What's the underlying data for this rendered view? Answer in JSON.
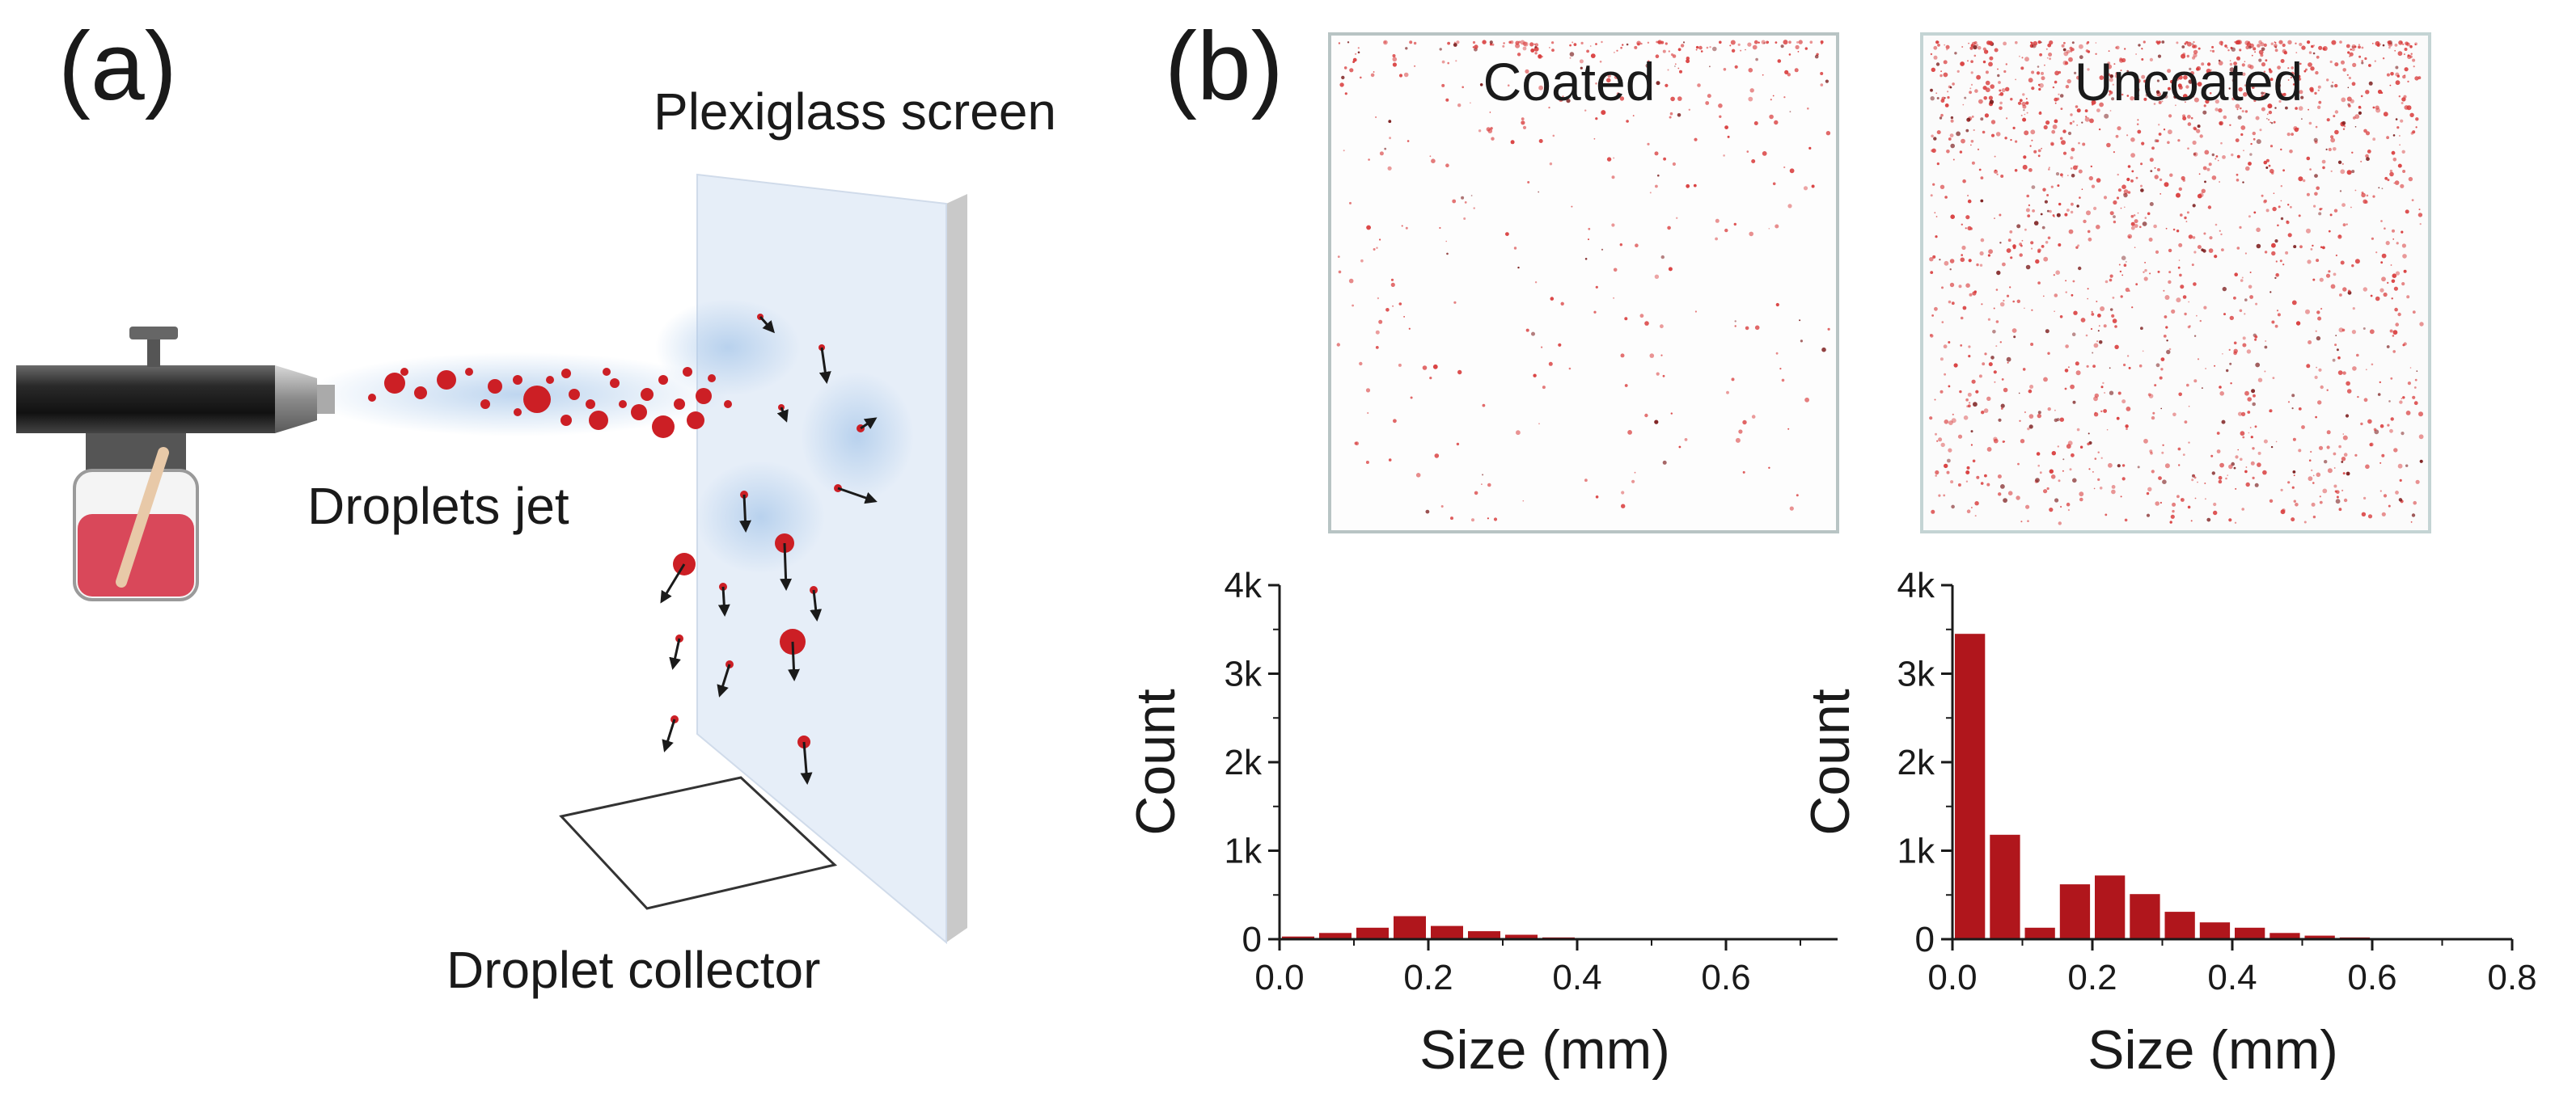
{
  "panels": {
    "a_label": "(a)",
    "b_label": "(b)"
  },
  "schematic": {
    "screen_label": "Plexiglass screen",
    "jet_label": "Droplets jet",
    "collector_label": "Droplet collector",
    "droplet_color": "#cc1f25",
    "mist_color": "#a9c8ea",
    "screen_color": "#e6eef8"
  },
  "photos": [
    {
      "title": "Coated",
      "speckle_density": "low"
    },
    {
      "title": "Uncoated",
      "speckle_density": "high"
    }
  ],
  "colors": {
    "bar": "#b0161c",
    "axis": "#1a1a1a"
  },
  "chart_data": [
    {
      "type": "bar",
      "title": "Coated",
      "xlabel": "Size (mm)",
      "ylabel": "Count",
      "xlim": [
        0,
        0.75
      ],
      "ylim": [
        0,
        4000
      ],
      "bin_width": 0.05,
      "x_ticks": [
        "0.0",
        "0.2",
        "0.4",
        "0.6"
      ],
      "x_tick_values": [
        0.0,
        0.2,
        0.4,
        0.6
      ],
      "y_ticks": [
        "0",
        "1k",
        "2k",
        "3k",
        "4k"
      ],
      "y_tick_values": [
        0,
        1000,
        2000,
        3000,
        4000
      ],
      "bin_starts": [
        0.0,
        0.05,
        0.1,
        0.15,
        0.2,
        0.25,
        0.3,
        0.35,
        0.4,
        0.45,
        0.5,
        0.55,
        0.6,
        0.65,
        0.7
      ],
      "values": [
        30,
        70,
        130,
        260,
        150,
        90,
        50,
        20,
        10,
        5,
        3,
        2,
        1,
        1,
        0
      ]
    },
    {
      "type": "bar",
      "title": "Uncoated",
      "xlabel": "Size (mm)",
      "ylabel": "Count",
      "xlim": [
        0,
        0.8
      ],
      "ylim": [
        0,
        4000
      ],
      "bin_width": 0.05,
      "x_ticks": [
        "0.0",
        "0.2",
        "0.4",
        "0.6",
        "0.8"
      ],
      "x_tick_values": [
        0.0,
        0.2,
        0.4,
        0.6,
        0.8
      ],
      "y_ticks": [
        "0",
        "1k",
        "2k",
        "3k",
        "4k"
      ],
      "y_tick_values": [
        0,
        1000,
        2000,
        3000,
        4000
      ],
      "bin_starts": [
        0.0,
        0.05,
        0.1,
        0.15,
        0.2,
        0.25,
        0.3,
        0.35,
        0.4,
        0.45,
        0.5,
        0.55,
        0.6,
        0.65,
        0.7
      ],
      "values": [
        3450,
        1180,
        130,
        620,
        720,
        510,
        310,
        190,
        130,
        70,
        40,
        20,
        10,
        5,
        0
      ]
    }
  ]
}
